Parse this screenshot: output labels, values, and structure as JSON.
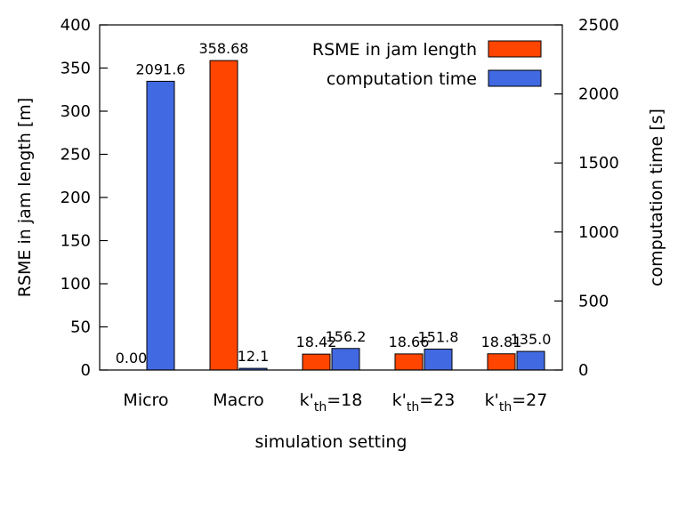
{
  "chart_data": {
    "type": "bar",
    "categories": [
      "Micro",
      "Macro",
      "k'th=18",
      "k'th=23",
      "k'th=27"
    ],
    "category_labels": [
      {
        "main": "Micro",
        "sub": ""
      },
      {
        "main": "Macro",
        "sub": ""
      },
      {
        "main": "k'",
        "sub": "th",
        "rest": "=18"
      },
      {
        "main": "k'",
        "sub": "th",
        "rest": "=23"
      },
      {
        "main": "k'",
        "sub": "th",
        "rest": "=27"
      }
    ],
    "series": [
      {
        "name": "RSME in jam length",
        "axis": "left",
        "color": "#ff4500",
        "values": [
          0.0,
          358.68,
          18.42,
          18.66,
          18.81
        ],
        "labels": [
          "0.00",
          "358.68",
          "18.42",
          "18.66",
          "18.81"
        ]
      },
      {
        "name": "computation time",
        "axis": "right",
        "color": "#4169e1",
        "values": [
          2091.6,
          12.1,
          156.2,
          151.8,
          135.0
        ],
        "labels": [
          "2091.6",
          "12.1",
          "156.2",
          "151.8",
          "135.0"
        ]
      }
    ],
    "xlabel": "simulation setting",
    "ylabel": "RSME in jam length [m]",
    "y2label": "computation time [s]",
    "ylim": [
      0,
      400
    ],
    "y2lim": [
      0,
      2500
    ],
    "yticks": [
      0,
      50,
      100,
      150,
      200,
      250,
      300,
      350,
      400
    ],
    "y2ticks": [
      0,
      500,
      1000,
      1500,
      2000,
      2500
    ],
    "grid": false,
    "legend_position": "top-right"
  }
}
